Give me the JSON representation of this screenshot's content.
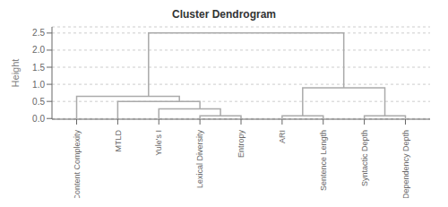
{
  "chart_data": {
    "type": "dendrogram",
    "title": "Cluster Dendrogram",
    "y_label": "Height",
    "categories": [
      "Content Complexity",
      "MTLD",
      "Yule's I",
      "Lexical Diversity",
      "Entropy",
      "ARI",
      "Sentence Length",
      "Syntactic Depth",
      "Dependency Depth"
    ],
    "merges": [
      {
        "left_x": 3,
        "right_x": 4,
        "left_height": 0.0,
        "right_height": 0.0,
        "height": 0.08
      },
      {
        "left_x": 2,
        "right_x": 3.5,
        "left_height": 0.0,
        "right_height": 0.08,
        "height": 0.28
      },
      {
        "left_x": 1,
        "right_x": 3.0,
        "left_height": 0.0,
        "right_height": 0.28,
        "height": 0.5
      },
      {
        "left_x": 0,
        "right_x": 2.5,
        "left_height": 0.0,
        "right_height": 0.5,
        "height": 0.65
      },
      {
        "left_x": 5,
        "right_x": 6,
        "left_height": 0.0,
        "right_height": 0.0,
        "height": 0.08
      },
      {
        "left_x": 7,
        "right_x": 8,
        "left_height": 0.0,
        "right_height": 0.0,
        "height": 0.08
      },
      {
        "left_x": 5.5,
        "right_x": 7.5,
        "left_height": 0.08,
        "right_height": 0.08,
        "height": 0.9
      },
      {
        "left_x": 1.75,
        "right_x": 6.5,
        "left_height": 0.65,
        "right_height": 0.9,
        "height": 2.5
      }
    ],
    "color": "#aaaaaa",
    "xlim": [
      -0.6,
      8.6
    ],
    "ylim": [
      -0.02,
      2.68
    ],
    "yticks": [
      {
        "value": 0.0,
        "label": "0.0"
      },
      0.5,
      {
        "value": 1.0,
        "label": "1.0"
      },
      1.5,
      {
        "value": 2.0,
        "label": "2.0"
      },
      2.5
    ],
    "grid": true
  }
}
